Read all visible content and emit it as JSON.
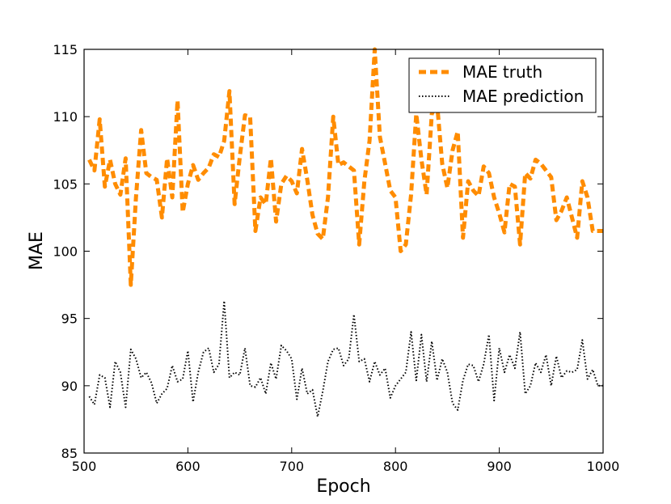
{
  "chart_data": {
    "type": "line",
    "title": "",
    "xlabel": "Epoch",
    "ylabel": "MAE",
    "xlim": [
      500,
      1000
    ],
    "ylim": [
      85,
      115
    ],
    "xticks": [
      500,
      600,
      700,
      800,
      900,
      1000
    ],
    "yticks": [
      85,
      90,
      95,
      100,
      105,
      110,
      115
    ],
    "grid": false,
    "legend_position": "top-right",
    "series": [
      {
        "name": "MAE truth",
        "color": "#ff8c00",
        "style": "dashed",
        "x": [
          505,
          510,
          515,
          520,
          525,
          530,
          535,
          540,
          545,
          550,
          555,
          560,
          565,
          570,
          575,
          580,
          585,
          590,
          595,
          600,
          605,
          610,
          615,
          620,
          625,
          630,
          635,
          640,
          645,
          650,
          655,
          660,
          665,
          670,
          675,
          680,
          685,
          690,
          695,
          700,
          705,
          710,
          715,
          720,
          725,
          730,
          735,
          740,
          745,
          750,
          755,
          760,
          765,
          770,
          775,
          780,
          785,
          790,
          795,
          800,
          805,
          810,
          815,
          820,
          825,
          830,
          835,
          840,
          845,
          850,
          855,
          860,
          865,
          870,
          875,
          880,
          885,
          890,
          895,
          900,
          905,
          910,
          915,
          920,
          925,
          930,
          935,
          940,
          945,
          950,
          955,
          960,
          965,
          970,
          975,
          980,
          985,
          990,
          995,
          1000
        ],
        "values": [
          106.8,
          106.0,
          109.8,
          104.8,
          106.8,
          105.0,
          104.2,
          106.9,
          97.5,
          104.0,
          109.0,
          105.8,
          105.5,
          105.3,
          102.5,
          106.9,
          104.0,
          111.2,
          102.9,
          105.0,
          106.4,
          105.3,
          105.8,
          106.2,
          107.2,
          107.0,
          108.2,
          111.9,
          103.5,
          107.0,
          110.1,
          110.0,
          101.5,
          104.0,
          103.5,
          106.9,
          102.2,
          105.0,
          105.6,
          105.2,
          104.3,
          107.6,
          105.3,
          102.7,
          101.3,
          100.9,
          104.0,
          110.0,
          106.4,
          106.6,
          106.3,
          106.0,
          100.5,
          105.2,
          108.2,
          115.0,
          108.5,
          106.5,
          104.5,
          104.0,
          100.0,
          100.5,
          104.2,
          110.2,
          106.8,
          104.2,
          110.2,
          111.0,
          106.5,
          104.7,
          107.5,
          108.9,
          101.0,
          105.2,
          104.5,
          104.1,
          106.3,
          105.8,
          104.0,
          102.8,
          101.4,
          105.0,
          104.8,
          100.5,
          105.8,
          105.4,
          106.8,
          106.5,
          106.0,
          105.5,
          102.3,
          103.0,
          104.0,
          102.5,
          101.0,
          105.2,
          104.0,
          101.5,
          101.5,
          101.5
        ]
      },
      {
        "name": "MAE prediction",
        "color": "#000000",
        "style": "dotted",
        "x": [
          505,
          510,
          515,
          520,
          525,
          530,
          535,
          540,
          545,
          550,
          555,
          560,
          565,
          570,
          575,
          580,
          585,
          590,
          595,
          600,
          605,
          610,
          615,
          620,
          625,
          630,
          635,
          640,
          645,
          650,
          655,
          660,
          665,
          670,
          675,
          680,
          685,
          690,
          695,
          700,
          705,
          710,
          715,
          720,
          725,
          730,
          735,
          740,
          745,
          750,
          755,
          760,
          765,
          770,
          775,
          780,
          785,
          790,
          795,
          800,
          805,
          810,
          815,
          820,
          825,
          830,
          835,
          840,
          845,
          850,
          855,
          860,
          865,
          870,
          875,
          880,
          885,
          890,
          895,
          900,
          905,
          910,
          915,
          920,
          925,
          930,
          935,
          940,
          945,
          950,
          955,
          960,
          965,
          970,
          975,
          980,
          985,
          990,
          995,
          1000
        ],
        "values": [
          89.2,
          88.6,
          90.8,
          90.6,
          88.4,
          91.8,
          91.0,
          88.4,
          92.7,
          92.0,
          90.6,
          91.0,
          90.2,
          88.7,
          89.4,
          89.8,
          91.5,
          90.3,
          90.5,
          92.6,
          88.8,
          91.0,
          92.5,
          92.8,
          91.0,
          91.6,
          96.3,
          90.6,
          91.0,
          90.8,
          92.8,
          90.0,
          89.9,
          90.6,
          89.4,
          91.7,
          90.5,
          93.0,
          92.6,
          92.0,
          89.0,
          91.3,
          89.4,
          89.7,
          87.7,
          89.6,
          91.8,
          92.7,
          92.8,
          91.5,
          92.0,
          95.3,
          91.8,
          92.0,
          90.3,
          91.8,
          90.8,
          91.3,
          89.1,
          90.0,
          90.5,
          91.0,
          94.0,
          90.4,
          93.8,
          90.3,
          93.3,
          90.4,
          92.0,
          91.0,
          88.7,
          88.2,
          90.4,
          91.6,
          91.5,
          90.3,
          91.6,
          93.8,
          88.9,
          92.8,
          91.0,
          92.3,
          91.3,
          94.0,
          89.4,
          90.0,
          91.7,
          91.0,
          92.3,
          90.0,
          92.2,
          90.6,
          91.1,
          91.0,
          91.2,
          93.4,
          90.5,
          91.2,
          90.0,
          90.0
        ]
      }
    ]
  }
}
